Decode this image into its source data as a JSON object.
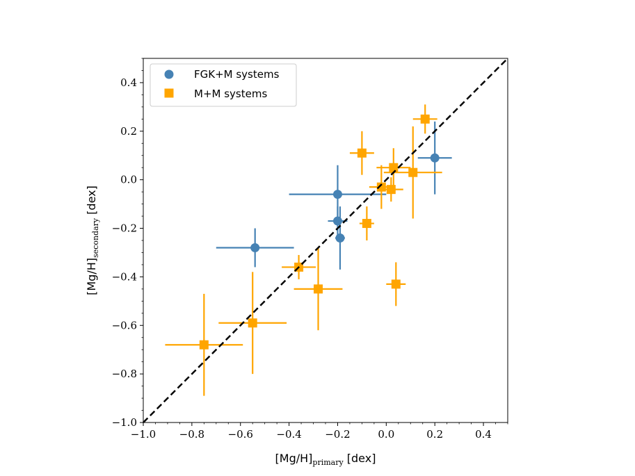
{
  "chart_data": {
    "type": "scatter",
    "xlabel": "[Mg/H]primary [dex]",
    "xlabel_main": "[Mg/H]",
    "xlabel_sub": "primary",
    "xlabel_unit": " [dex]",
    "ylabel": "[Mg/H]secondary [dex]",
    "ylabel_main": "[Mg/H]",
    "ylabel_sub": "secondary",
    "ylabel_unit": " [dex]",
    "xlim": [
      -1.0,
      0.5
    ],
    "ylim": [
      -1.0,
      0.5
    ],
    "xticks": [
      -1.0,
      -0.8,
      -0.6,
      -0.4,
      -0.2,
      0.0,
      0.2,
      0.4
    ],
    "yticks": [
      -1.0,
      -0.8,
      -0.6,
      -0.4,
      -0.2,
      0.0,
      0.2,
      0.4
    ],
    "xtick_labels": [
      "−1.0",
      "−0.8",
      "−0.6",
      "−0.4",
      "−0.2",
      "0.0",
      "0.2",
      "0.4"
    ],
    "ytick_labels": [
      "−1.0",
      "−0.8",
      "−0.6",
      "−0.4",
      "−0.2",
      "0.0",
      "0.2",
      "0.4"
    ],
    "grid": false,
    "legend_position": "upper-left",
    "reference_line": {
      "style": "dashed",
      "color": "#000000",
      "from": [
        -1.0,
        -1.0
      ],
      "to": [
        0.5,
        0.5
      ]
    },
    "series": [
      {
        "name": "FGK+M systems",
        "marker": "circle",
        "color": "#4682b4",
        "points": [
          {
            "x": -0.54,
            "y": -0.28,
            "xerr": [
              0.16,
              0.16
            ],
            "yerr": [
              0.08,
              0.08
            ]
          },
          {
            "x": -0.2,
            "y": -0.06,
            "xerr": [
              0.2,
              0.2
            ],
            "yerr": [
              0.12,
              0.12
            ]
          },
          {
            "x": -0.2,
            "y": -0.17,
            "xerr": [
              0.04,
              0.04
            ],
            "yerr": [
              0.06,
              0.06
            ]
          },
          {
            "x": -0.19,
            "y": -0.24,
            "xerr": [
              0.02,
              0.02
            ],
            "yerr": [
              0.13,
              0.13
            ]
          },
          {
            "x": 0.2,
            "y": 0.09,
            "xerr": [
              0.07,
              0.07
            ],
            "yerr": [
              0.15,
              0.15
            ]
          }
        ]
      },
      {
        "name": "M+M systems",
        "marker": "square",
        "color": "#ffa500",
        "points": [
          {
            "x": -0.75,
            "y": -0.68,
            "xerr": [
              0.16,
              0.16
            ],
            "yerr": [
              0.21,
              0.21
            ]
          },
          {
            "x": -0.55,
            "y": -0.59,
            "xerr": [
              0.14,
              0.14
            ],
            "yerr": [
              0.21,
              0.21
            ]
          },
          {
            "x": -0.36,
            "y": -0.36,
            "xerr": [
              0.07,
              0.07
            ],
            "yerr": [
              0.05,
              0.05
            ]
          },
          {
            "x": -0.28,
            "y": -0.45,
            "xerr": [
              0.1,
              0.1
            ],
            "yerr": [
              0.17,
              0.17
            ]
          },
          {
            "x": -0.1,
            "y": 0.11,
            "xerr": [
              0.05,
              0.05
            ],
            "yerr": [
              0.09,
              0.09
            ]
          },
          {
            "x": -0.08,
            "y": -0.18,
            "xerr": [
              0.03,
              0.03
            ],
            "yerr": [
              0.07,
              0.07
            ]
          },
          {
            "x": -0.02,
            "y": -0.03,
            "xerr": [
              0.05,
              0.05
            ],
            "yerr": [
              0.09,
              0.09
            ]
          },
          {
            "x": 0.03,
            "y": 0.05,
            "xerr": [
              0.07,
              0.07
            ],
            "yerr": [
              0.08,
              0.08
            ]
          },
          {
            "x": 0.02,
            "y": -0.04,
            "xerr": [
              0.05,
              0.05
            ],
            "yerr": [
              0.05,
              0.05
            ]
          },
          {
            "x": 0.04,
            "y": -0.43,
            "xerr": [
              0.04,
              0.04
            ],
            "yerr": [
              0.09,
              0.09
            ]
          },
          {
            "x": 0.11,
            "y": 0.03,
            "xerr": [
              0.12,
              0.12
            ],
            "yerr": [
              0.19,
              0.19
            ]
          },
          {
            "x": 0.16,
            "y": 0.25,
            "xerr": [
              0.05,
              0.05
            ],
            "yerr": [
              0.06,
              0.06
            ]
          }
        ]
      }
    ]
  }
}
